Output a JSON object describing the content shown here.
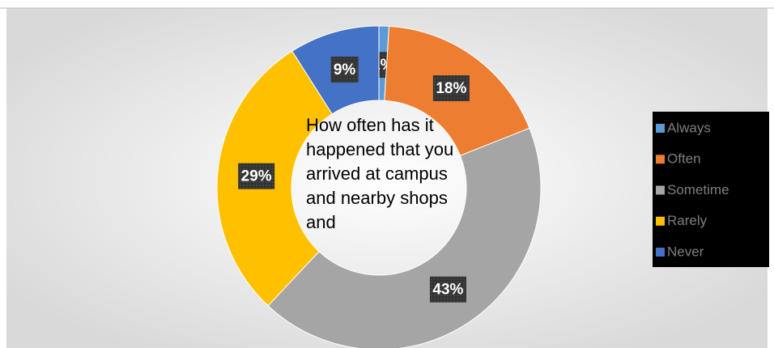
{
  "chart_data": {
    "type": "donut",
    "title": "How often has  it happened that you arrived at campus and nearby shops and",
    "categories": [
      "Always",
      "Often",
      "Sometime",
      "Rarely",
      "Never"
    ],
    "values": [
      1,
      18,
      43,
      29,
      9
    ],
    "value_labels": [
      "1%",
      "18%",
      "43%",
      "29%",
      "9%"
    ],
    "colors": [
      "#5b9bd5",
      "#ed7d31",
      "#a5a5a5",
      "#ffc000",
      "#4472c4"
    ],
    "legend": "right"
  }
}
